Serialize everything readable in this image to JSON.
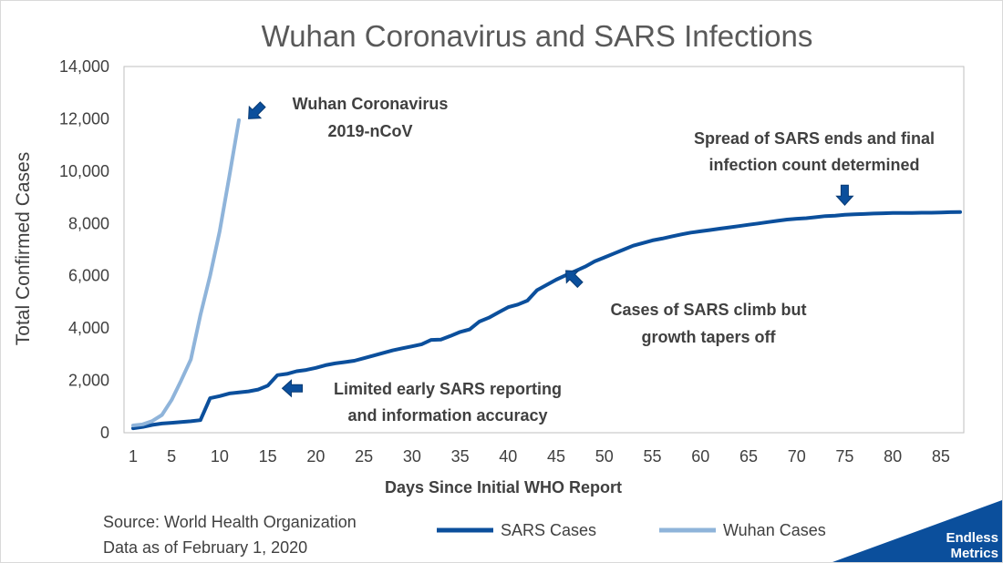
{
  "chart_data": {
    "type": "line",
    "title": "Wuhan Coronavirus and SARS Infections",
    "xlabel": "Days Since Initial WHO Report",
    "ylabel": "Total Confirmed Cases",
    "xlim": [
      1,
      87
    ],
    "ylim": [
      0,
      14000
    ],
    "x_ticks": [
      1,
      5,
      10,
      15,
      20,
      25,
      30,
      35,
      40,
      45,
      50,
      55,
      60,
      65,
      70,
      75,
      80,
      85
    ],
    "y_ticks": [
      0,
      2000,
      4000,
      6000,
      8000,
      10000,
      12000,
      14000
    ],
    "y_tick_labels": [
      "0",
      "2,000",
      "4,000",
      "6,000",
      "8,000",
      "10,000",
      "12,000",
      "14,000"
    ],
    "grid": false,
    "legend_position": "bottom",
    "series": [
      {
        "name": "SARS Cases",
        "color": "#0b4f9c",
        "points": [
          [
            1,
            170
          ],
          [
            2,
            220
          ],
          [
            3,
            300
          ],
          [
            4,
            350
          ],
          [
            5,
            380
          ],
          [
            6,
            410
          ],
          [
            7,
            440
          ],
          [
            8,
            480
          ],
          [
            9,
            1320
          ],
          [
            10,
            1400
          ],
          [
            11,
            1500
          ],
          [
            12,
            1540
          ],
          [
            13,
            1580
          ],
          [
            14,
            1650
          ],
          [
            15,
            1800
          ],
          [
            16,
            2200
          ],
          [
            17,
            2250
          ],
          [
            18,
            2350
          ],
          [
            19,
            2400
          ],
          [
            20,
            2480
          ],
          [
            21,
            2580
          ],
          [
            22,
            2650
          ],
          [
            23,
            2700
          ],
          [
            24,
            2750
          ],
          [
            25,
            2850
          ],
          [
            26,
            2950
          ],
          [
            27,
            3050
          ],
          [
            28,
            3150
          ],
          [
            29,
            3230
          ],
          [
            30,
            3300
          ],
          [
            31,
            3380
          ],
          [
            32,
            3550
          ],
          [
            33,
            3560
          ],
          [
            34,
            3700
          ],
          [
            35,
            3850
          ],
          [
            36,
            3950
          ],
          [
            37,
            4250
          ],
          [
            38,
            4400
          ],
          [
            39,
            4600
          ],
          [
            40,
            4800
          ],
          [
            41,
            4900
          ],
          [
            42,
            5050
          ],
          [
            43,
            5450
          ],
          [
            44,
            5650
          ],
          [
            45,
            5850
          ],
          [
            46,
            6020
          ],
          [
            47,
            6180
          ],
          [
            48,
            6350
          ],
          [
            49,
            6550
          ],
          [
            50,
            6700
          ],
          [
            51,
            6850
          ],
          [
            52,
            7000
          ],
          [
            53,
            7150
          ],
          [
            54,
            7250
          ],
          [
            55,
            7350
          ],
          [
            56,
            7420
          ],
          [
            57,
            7500
          ],
          [
            58,
            7580
          ],
          [
            59,
            7650
          ],
          [
            60,
            7700
          ],
          [
            61,
            7750
          ],
          [
            62,
            7800
          ],
          [
            63,
            7850
          ],
          [
            64,
            7900
          ],
          [
            65,
            7950
          ],
          [
            66,
            8000
          ],
          [
            67,
            8050
          ],
          [
            68,
            8100
          ],
          [
            69,
            8150
          ],
          [
            70,
            8180
          ],
          [
            71,
            8200
          ],
          [
            72,
            8240
          ],
          [
            73,
            8280
          ],
          [
            74,
            8300
          ],
          [
            75,
            8330
          ],
          [
            76,
            8350
          ],
          [
            77,
            8360
          ],
          [
            78,
            8380
          ],
          [
            79,
            8390
          ],
          [
            80,
            8400
          ],
          [
            81,
            8400
          ],
          [
            82,
            8400
          ],
          [
            83,
            8410
          ],
          [
            84,
            8410
          ],
          [
            85,
            8420
          ],
          [
            86,
            8430
          ],
          [
            87,
            8440
          ]
        ]
      },
      {
        "name": "Wuhan Cases",
        "color": "#8fb4da",
        "points": [
          [
            1,
            280
          ],
          [
            2,
            320
          ],
          [
            3,
            450
          ],
          [
            4,
            680
          ],
          [
            5,
            1250
          ],
          [
            6,
            2000
          ],
          [
            7,
            2800
          ],
          [
            8,
            4500
          ],
          [
            9,
            6000
          ],
          [
            10,
            7700
          ],
          [
            11,
            9800
          ],
          [
            12,
            11950
          ]
        ]
      }
    ],
    "annotations": [
      {
        "lines": [
          "Wuhan Coronavirus",
          "2019-nCoV"
        ],
        "arrow_at": [
          13,
          12000
        ],
        "arrow_direction": "down-left"
      },
      {
        "lines": [
          "Spread of SARS ends and final",
          "infection count determined"
        ],
        "arrow_at": [
          75,
          8700
        ],
        "arrow_direction": "down"
      },
      {
        "lines": [
          "Cases of SARS climb but",
          "growth tapers off"
        ],
        "arrow_at": [
          46,
          6200
        ],
        "arrow_direction": "up-left"
      },
      {
        "lines": [
          "Limited early SARS reporting",
          "and information accuracy"
        ],
        "arrow_at": [
          16.5,
          1700
        ],
        "arrow_direction": "left"
      }
    ]
  },
  "footer": {
    "source": "Source: World Health Organization",
    "date": "Data as of February 1, 2020"
  },
  "logo": {
    "line1": "Endless",
    "line2": "Metrics",
    "color": "#0b4f9c"
  }
}
